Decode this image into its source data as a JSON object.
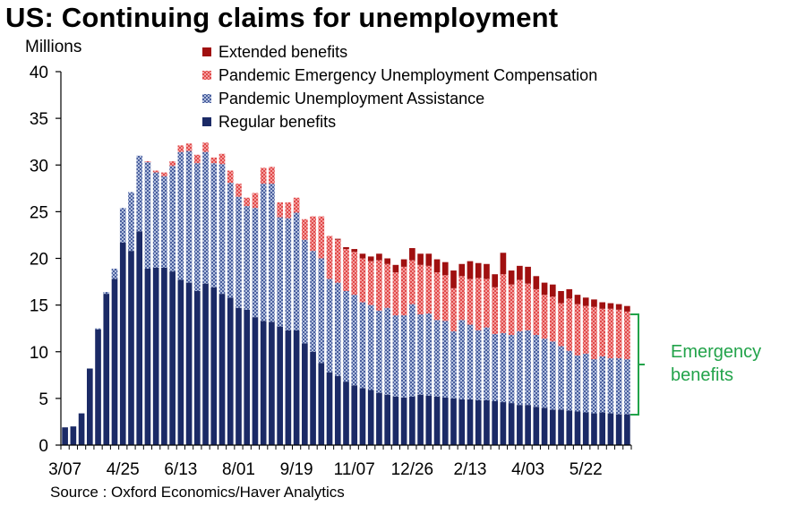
{
  "title": "US: Continuing claims for unemployment",
  "units_label": "Millions",
  "source": "Source : Oxford Economics/Haver Analytics",
  "annotation": [
    "Emergency",
    "benefits"
  ],
  "colors": {
    "regular": "#1b2a66",
    "pua": "#8a9cc8",
    "peuc": "#ee7070",
    "extended": "#a01010",
    "annotation": "#22a34a"
  },
  "chart_data": {
    "type": "bar",
    "stacked": true,
    "ylabel": "Millions",
    "ylim": [
      0,
      40
    ],
    "yticks": [
      0,
      5,
      10,
      15,
      20,
      25,
      30,
      35,
      40
    ],
    "xtick_labels": [
      "3/07",
      "4/25",
      "6/13",
      "8/01",
      "9/19",
      "11/07",
      "12/26",
      "2/13",
      "4/03",
      "5/22"
    ],
    "xtick_positions": [
      0,
      7,
      14,
      21,
      28,
      35,
      42,
      49,
      56,
      63
    ],
    "legend": [
      "Extended benefits",
      "Pandemic Emergency Unemployment Compensation",
      "Pandemic Unemployment Assistance",
      "Regular benefits"
    ],
    "legend_position": "top",
    "series": [
      {
        "name": "Regular benefits",
        "key": "regular",
        "values": [
          1.9,
          2.0,
          3.4,
          8.2,
          12.4,
          16.2,
          17.8,
          21.7,
          20.8,
          22.9,
          18.9,
          19.0,
          19.0,
          18.6,
          17.7,
          17.4,
          16.5,
          17.3,
          16.9,
          16.2,
          15.8,
          14.7,
          14.5,
          13.7,
          13.3,
          13.2,
          12.7,
          12.3,
          12.3,
          10.9,
          10.0,
          8.8,
          7.8,
          7.4,
          6.8,
          6.4,
          6.1,
          5.9,
          5.6,
          5.4,
          5.2,
          5.1,
          5.2,
          5.4,
          5.3,
          5.2,
          5.1,
          5.0,
          4.9,
          4.9,
          4.8,
          4.8,
          4.7,
          4.6,
          4.5,
          4.3,
          4.3,
          4.1,
          4.0,
          3.8,
          3.8,
          3.7,
          3.6,
          3.5,
          3.4,
          3.5,
          3.4,
          3.3,
          3.3
        ]
      },
      {
        "name": "Pandemic Unemployment Assistance",
        "key": "pua",
        "values": [
          0,
          0,
          0,
          0,
          0.1,
          0.2,
          1.1,
          3.7,
          6.3,
          8.1,
          11.4,
          10.2,
          9.8,
          11.3,
          13.7,
          14.1,
          13.7,
          14.1,
          13.3,
          13.9,
          12.3,
          11.9,
          11.1,
          11.7,
          14.7,
          14.8,
          11.7,
          12.0,
          12.6,
          11.1,
          10.8,
          11.2,
          10.0,
          10.0,
          9.7,
          9.7,
          9.2,
          9.1,
          8.8,
          9.3,
          8.7,
          8.8,
          9.9,
          8.6,
          8.8,
          8.2,
          8.2,
          7.2,
          8.5,
          8.0,
          7.5,
          7.8,
          7.2,
          7.4,
          7.3,
          7.9,
          8.0,
          7.7,
          7.4,
          7.3,
          6.8,
          6.4,
          6.0,
          6.3,
          5.8,
          6.0,
          5.9,
          6.0,
          5.9
        ]
      },
      {
        "name": "Pandemic Emergency Unemployment Compensation",
        "key": "peuc",
        "values": [
          0,
          0,
          0,
          0,
          0,
          0,
          0,
          0,
          0,
          0,
          0.1,
          0.2,
          0.4,
          0.5,
          0.7,
          0.8,
          0.9,
          1.0,
          0.6,
          1.1,
          1.3,
          1.4,
          0.9,
          1.6,
          1.7,
          1.8,
          1.6,
          1.7,
          1.6,
          2.2,
          3.7,
          4.5,
          4.6,
          4.6,
          4.5,
          4.6,
          4.7,
          4.7,
          5.4,
          4.7,
          4.6,
          5.2,
          4.7,
          5.3,
          5.1,
          5.1,
          4.9,
          4.6,
          4.7,
          4.9,
          5.6,
          5.2,
          5.0,
          6.3,
          5.4,
          5.5,
          5.0,
          4.9,
          4.7,
          4.8,
          4.6,
          5.6,
          5.5,
          5.1,
          5.6,
          5.1,
          5.3,
          5.2,
          5.1
        ]
      },
      {
        "name": "Extended benefits",
        "key": "extended",
        "values": [
          0,
          0,
          0,
          0,
          0,
          0,
          0,
          0,
          0,
          0,
          0,
          0,
          0,
          0,
          0,
          0,
          0,
          0,
          0,
          0,
          0,
          0,
          0,
          0,
          0,
          0,
          0,
          0,
          0,
          0,
          0,
          0,
          0,
          0.1,
          0.2,
          0.3,
          0.5,
          0.5,
          0.7,
          0.6,
          0.8,
          0.8,
          1.3,
          1.2,
          1.3,
          1.4,
          1.4,
          1.9,
          1.3,
          1.9,
          1.6,
          1.6,
          1.4,
          2.3,
          1.5,
          1.5,
          1.8,
          1.4,
          1.3,
          1.3,
          1.3,
          1.0,
          1.0,
          0.9,
          0.8,
          0.7,
          0.6,
          0.6,
          0.6
        ]
      }
    ]
  }
}
